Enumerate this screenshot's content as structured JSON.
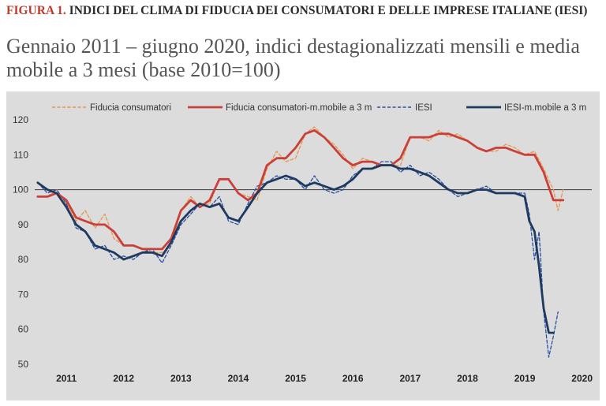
{
  "header": {
    "figure_label": "FIGURA 1.",
    "figure_title": "INDICI DEL CLIMA DI FIDUCIA DEI CONSUMATORI E DELLE IMPRESE ITALIANE (IESI)",
    "subtitle": "Gennaio 2011 – giugno 2020, indici destagionalizzati mensili e media mobile a 3 mesi (base 2010=100)"
  },
  "chart_data": {
    "type": "line",
    "title": "",
    "xlabel": "",
    "ylabel": "",
    "ylim": [
      50,
      120
    ],
    "yticks": [
      "50",
      "60",
      "70",
      "80",
      "90",
      "100",
      "110",
      "120"
    ],
    "years": [
      "2011",
      "2012",
      "2013",
      "2014",
      "2015",
      "2016",
      "2017",
      "2018",
      "2019",
      "2020"
    ],
    "reference_line": 100,
    "grid": false,
    "legend_position": "top",
    "series": [
      {
        "name": "Fiducia consumatori",
        "color": "#e8954a",
        "style": "dashed",
        "points": [
          [
            2011.0,
            98
          ],
          [
            2011.17,
            98
          ],
          [
            2011.33,
            100
          ],
          [
            2011.5,
            96
          ],
          [
            2011.67,
            91
          ],
          [
            2011.83,
            94
          ],
          [
            2012.0,
            89
          ],
          [
            2012.17,
            93
          ],
          [
            2012.33,
            86
          ],
          [
            2012.5,
            84
          ],
          [
            2012.67,
            84
          ],
          [
            2012.83,
            83
          ],
          [
            2013.0,
            82
          ],
          [
            2013.17,
            82
          ],
          [
            2013.33,
            84
          ],
          [
            2013.5,
            94
          ],
          [
            2013.67,
            98
          ],
          [
            2013.83,
            95
          ],
          [
            2014.0,
            96
          ],
          [
            2014.17,
            103
          ],
          [
            2014.33,
            103
          ],
          [
            2014.5,
            99
          ],
          [
            2014.67,
            98
          ],
          [
            2014.83,
            97
          ],
          [
            2015.0,
            106
          ],
          [
            2015.17,
            111
          ],
          [
            2015.33,
            108
          ],
          [
            2015.5,
            109
          ],
          [
            2015.67,
            116
          ],
          [
            2015.83,
            118
          ],
          [
            2016.0,
            115
          ],
          [
            2016.17,
            113
          ],
          [
            2016.33,
            110
          ],
          [
            2016.5,
            106
          ],
          [
            2016.67,
            109
          ],
          [
            2016.83,
            108
          ],
          [
            2017.0,
            107
          ],
          [
            2017.17,
            107
          ],
          [
            2017.33,
            107
          ],
          [
            2017.5,
            115
          ],
          [
            2017.67,
            115
          ],
          [
            2017.83,
            114
          ],
          [
            2018.0,
            117
          ],
          [
            2018.17,
            115
          ],
          [
            2018.33,
            116
          ],
          [
            2018.5,
            114
          ],
          [
            2018.67,
            112
          ],
          [
            2018.83,
            111
          ],
          [
            2019.0,
            111
          ],
          [
            2019.17,
            113
          ],
          [
            2019.33,
            112
          ],
          [
            2019.5,
            110
          ],
          [
            2019.67,
            111
          ],
          [
            2019.83,
            106
          ],
          [
            2020.0,
            100
          ],
          [
            2020.08,
            94
          ],
          [
            2020.17,
            100
          ]
        ]
      },
      {
        "name": "Fiducia consumatori-m.mobile a 3 m",
        "color": "#c9403a",
        "style": "solid",
        "points": [
          [
            2011.0,
            98
          ],
          [
            2011.17,
            98
          ],
          [
            2011.33,
            99
          ],
          [
            2011.5,
            97
          ],
          [
            2011.67,
            92
          ],
          [
            2011.83,
            91
          ],
          [
            2012.0,
            90
          ],
          [
            2012.17,
            90
          ],
          [
            2012.33,
            88
          ],
          [
            2012.5,
            84
          ],
          [
            2012.67,
            84
          ],
          [
            2012.83,
            83
          ],
          [
            2013.0,
            83
          ],
          [
            2013.17,
            83
          ],
          [
            2013.33,
            86
          ],
          [
            2013.5,
            94
          ],
          [
            2013.67,
            97
          ],
          [
            2013.83,
            95
          ],
          [
            2014.0,
            97
          ],
          [
            2014.17,
            103
          ],
          [
            2014.33,
            103
          ],
          [
            2014.5,
            99
          ],
          [
            2014.67,
            97
          ],
          [
            2014.83,
            99
          ],
          [
            2015.0,
            107
          ],
          [
            2015.17,
            109
          ],
          [
            2015.33,
            109
          ],
          [
            2015.5,
            112
          ],
          [
            2015.67,
            116
          ],
          [
            2015.83,
            117
          ],
          [
            2016.0,
            115
          ],
          [
            2016.17,
            112
          ],
          [
            2016.33,
            109
          ],
          [
            2016.5,
            107
          ],
          [
            2016.67,
            108
          ],
          [
            2016.83,
            108
          ],
          [
            2017.0,
            107
          ],
          [
            2017.17,
            107
          ],
          [
            2017.33,
            109
          ],
          [
            2017.5,
            115
          ],
          [
            2017.67,
            115
          ],
          [
            2017.83,
            115
          ],
          [
            2018.0,
            116
          ],
          [
            2018.17,
            116
          ],
          [
            2018.33,
            115
          ],
          [
            2018.5,
            114
          ],
          [
            2018.67,
            112
          ],
          [
            2018.83,
            111
          ],
          [
            2019.0,
            112
          ],
          [
            2019.17,
            112
          ],
          [
            2019.33,
            111
          ],
          [
            2019.5,
            110
          ],
          [
            2019.67,
            110
          ],
          [
            2019.83,
            105
          ],
          [
            2020.0,
            97
          ],
          [
            2020.17,
            97
          ]
        ]
      },
      {
        "name": "IESI",
        "color": "#2b4fa0",
        "style": "dashed",
        "points": [
          [
            2011.0,
            102
          ],
          [
            2011.17,
            99
          ],
          [
            2011.33,
            100
          ],
          [
            2011.5,
            96
          ],
          [
            2011.67,
            89
          ],
          [
            2011.83,
            88
          ],
          [
            2012.0,
            83
          ],
          [
            2012.17,
            84
          ],
          [
            2012.33,
            80
          ],
          [
            2012.5,
            81
          ],
          [
            2012.67,
            80
          ],
          [
            2012.83,
            82
          ],
          [
            2013.0,
            83
          ],
          [
            2013.17,
            79
          ],
          [
            2013.33,
            84
          ],
          [
            2013.5,
            90
          ],
          [
            2013.67,
            93
          ],
          [
            2013.83,
            96
          ],
          [
            2014.0,
            95
          ],
          [
            2014.17,
            98
          ],
          [
            2014.33,
            91
          ],
          [
            2014.5,
            90
          ],
          [
            2014.67,
            96
          ],
          [
            2014.83,
            101
          ],
          [
            2015.0,
            102
          ],
          [
            2015.17,
            104
          ],
          [
            2015.33,
            103
          ],
          [
            2015.5,
            103
          ],
          [
            2015.67,
            100
          ],
          [
            2015.83,
            104
          ],
          [
            2016.0,
            100
          ],
          [
            2016.17,
            99
          ],
          [
            2016.33,
            100
          ],
          [
            2016.5,
            104
          ],
          [
            2016.67,
            106
          ],
          [
            2016.83,
            106
          ],
          [
            2017.0,
            108
          ],
          [
            2017.17,
            108
          ],
          [
            2017.33,
            105
          ],
          [
            2017.5,
            107
          ],
          [
            2017.67,
            104
          ],
          [
            2017.83,
            105
          ],
          [
            2018.0,
            103
          ],
          [
            2018.17,
            100
          ],
          [
            2018.33,
            98
          ],
          [
            2018.5,
            99
          ],
          [
            2018.67,
            100
          ],
          [
            2018.83,
            101
          ],
          [
            2019.0,
            99
          ],
          [
            2019.17,
            99
          ],
          [
            2019.33,
            99
          ],
          [
            2019.5,
            99
          ],
          [
            2019.58,
            93
          ],
          [
            2019.67,
            80
          ],
          [
            2019.75,
            88
          ],
          [
            2019.83,
            65
          ],
          [
            2019.92,
            52
          ],
          [
            2020.0,
            58
          ],
          [
            2020.08,
            65
          ]
        ]
      },
      {
        "name": "IESI-m.mobile a 3 m",
        "color": "#1f3a5f",
        "style": "solid",
        "points": [
          [
            2011.0,
            102
          ],
          [
            2011.17,
            100
          ],
          [
            2011.33,
            99
          ],
          [
            2011.5,
            95
          ],
          [
            2011.67,
            90
          ],
          [
            2011.83,
            88
          ],
          [
            2012.0,
            84
          ],
          [
            2012.17,
            83
          ],
          [
            2012.33,
            82
          ],
          [
            2012.5,
            80
          ],
          [
            2012.67,
            81
          ],
          [
            2012.83,
            82
          ],
          [
            2013.0,
            82
          ],
          [
            2013.17,
            81
          ],
          [
            2013.33,
            85
          ],
          [
            2013.5,
            91
          ],
          [
            2013.67,
            94
          ],
          [
            2013.83,
            96
          ],
          [
            2014.0,
            95
          ],
          [
            2014.17,
            96
          ],
          [
            2014.33,
            92
          ],
          [
            2014.5,
            91
          ],
          [
            2014.67,
            95
          ],
          [
            2014.83,
            99
          ],
          [
            2015.0,
            102
          ],
          [
            2015.17,
            103
          ],
          [
            2015.33,
            104
          ],
          [
            2015.5,
            103
          ],
          [
            2015.67,
            101
          ],
          [
            2015.83,
            102
          ],
          [
            2016.0,
            101
          ],
          [
            2016.17,
            100
          ],
          [
            2016.33,
            101
          ],
          [
            2016.5,
            103
          ],
          [
            2016.67,
            106
          ],
          [
            2016.83,
            106
          ],
          [
            2017.0,
            107
          ],
          [
            2017.17,
            107
          ],
          [
            2017.33,
            106
          ],
          [
            2017.5,
            106
          ],
          [
            2017.67,
            105
          ],
          [
            2017.83,
            104
          ],
          [
            2018.0,
            102
          ],
          [
            2018.17,
            100
          ],
          [
            2018.33,
            99
          ],
          [
            2018.5,
            99
          ],
          [
            2018.67,
            100
          ],
          [
            2018.83,
            100
          ],
          [
            2019.0,
            99
          ],
          [
            2019.17,
            99
          ],
          [
            2019.33,
            99
          ],
          [
            2019.5,
            98
          ],
          [
            2019.58,
            91
          ],
          [
            2019.67,
            88
          ],
          [
            2019.75,
            78
          ],
          [
            2019.83,
            66
          ],
          [
            2019.92,
            59
          ],
          [
            2020.0,
            59
          ]
        ]
      }
    ]
  }
}
